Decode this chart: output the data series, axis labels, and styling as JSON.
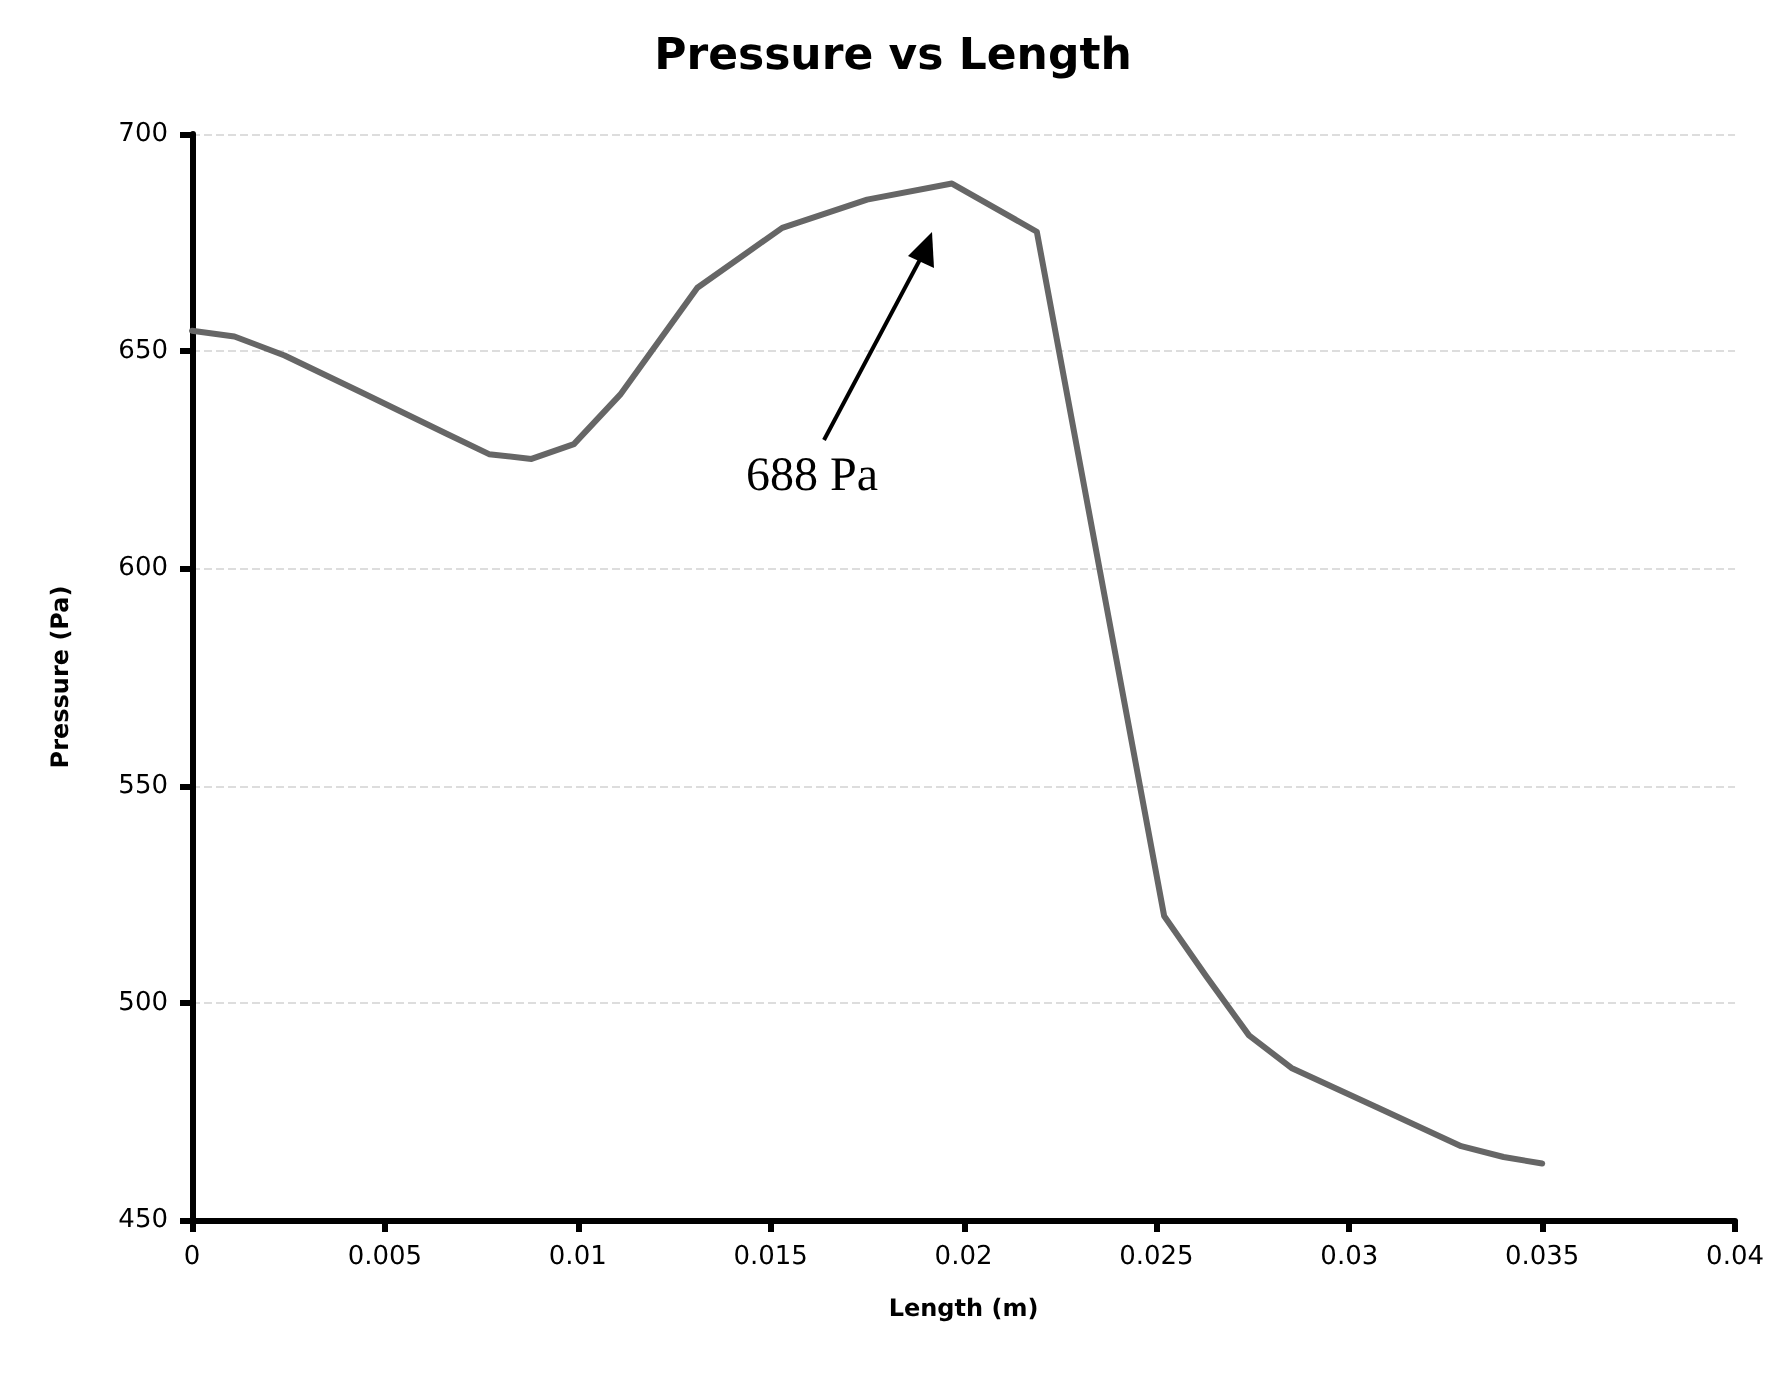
{
  "chart_data": {
    "type": "line",
    "title": "Pressure vs Length",
    "xlabel": "Length (m)",
    "ylabel": "Pressure (Pa)",
    "x": [
      0,
      0.0011,
      0.0024,
      0.0044,
      0.0066,
      0.0077,
      0.0088,
      0.0099,
      0.0111,
      0.0131,
      0.0153,
      0.0175,
      0.0197,
      0.0219,
      0.0252,
      0.0263,
      0.0274,
      0.0285,
      0.0307,
      0.0329,
      0.034,
      0.035
    ],
    "series": [
      {
        "color": "#666666",
        "values": [
          654.7,
          653.4,
          649,
          640.5,
          631,
          626.3,
          625.2,
          628.6,
          640,
          664.6,
          678.4,
          684.9,
          688.6,
          677.5,
          520,
          506,
          492.5,
          485,
          476,
          467,
          464.5,
          463
        ]
      }
    ],
    "xlim": [
      0,
      0.04
    ],
    "xticks": [
      0,
      0.005,
      0.01,
      0.015,
      0.02,
      0.025,
      0.03,
      0.035,
      0.04
    ],
    "ylim": [
      450,
      700
    ],
    "yticks": [
      450,
      500,
      550,
      600,
      650,
      700
    ],
    "grid": "y",
    "marker": "none",
    "line_style": "solid",
    "annotations": [
      "688 Pa"
    ]
  }
}
